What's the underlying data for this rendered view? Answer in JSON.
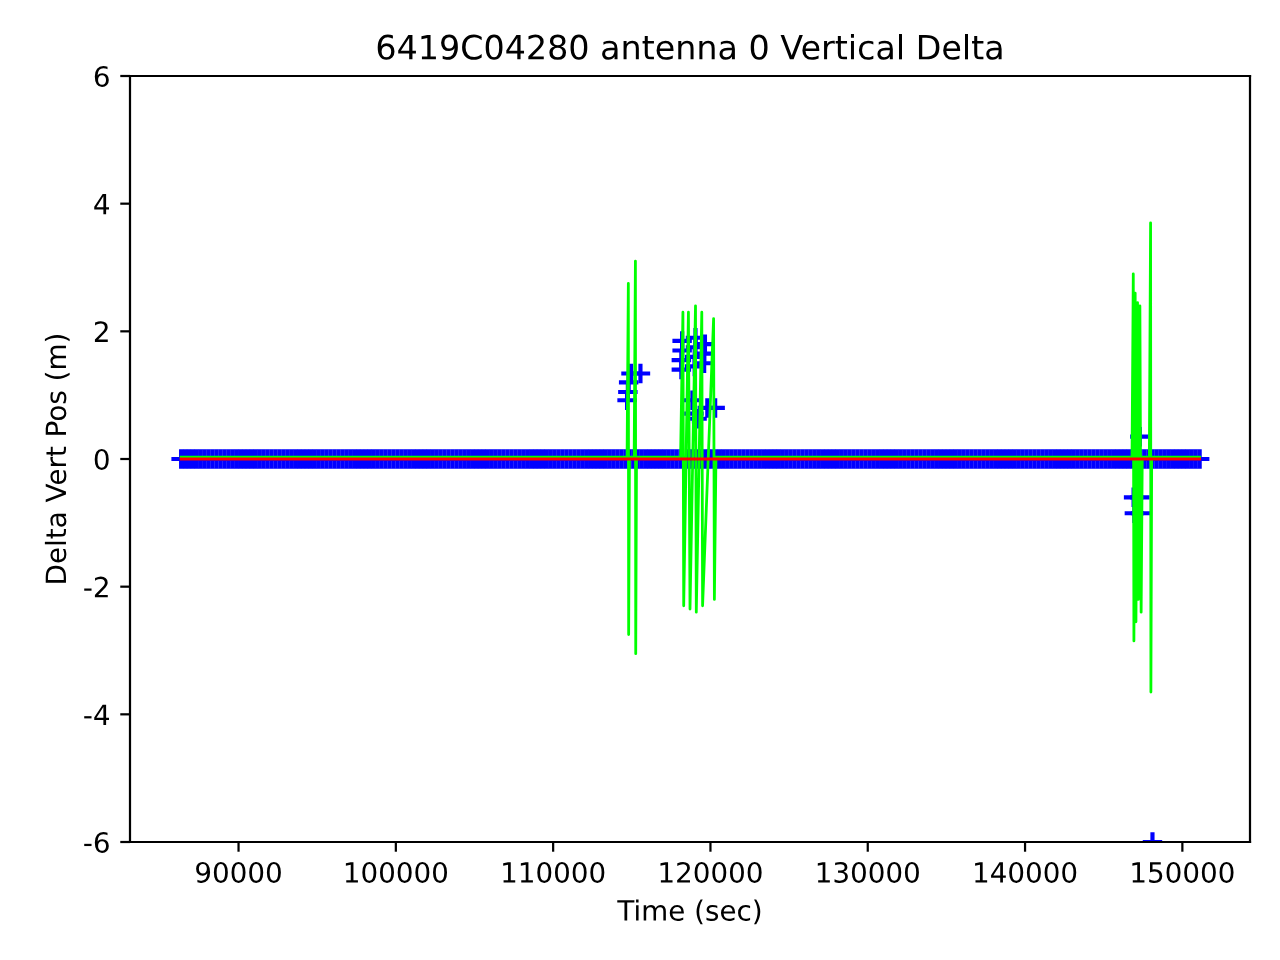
{
  "chart_data": {
    "type": "scatter",
    "title": "6419C04280 antenna 0 Vertical Delta",
    "xlabel": "Time (sec)",
    "ylabel": "Delta Vert Pos (m)",
    "xlim": [
      83100,
      154300
    ],
    "xticks": [
      90000,
      100000,
      110000,
      120000,
      130000,
      140000,
      150000
    ],
    "ylim": [
      -6,
      6
    ],
    "yticks": [
      -6,
      -4,
      -2,
      0,
      2,
      4,
      6
    ],
    "series": [
      {
        "marker": "cross",
        "color": "#0000ff",
        "x": [
          86350,
          86600,
          86850,
          87100,
          87350,
          87600,
          87850,
          88100,
          88350,
          88600,
          88850,
          89100,
          89350,
          89600,
          89850,
          90100,
          90350,
          90600,
          90850,
          91100,
          91350,
          91600,
          91850,
          92100,
          92350,
          92600,
          92850,
          93100,
          93350,
          93600,
          93850,
          94100,
          94350,
          94600,
          94850,
          95100,
          95350,
          95600,
          95850,
          96100,
          96350,
          96600,
          96850,
          97100,
          97350,
          97600,
          97850,
          98100,
          98350,
          98600,
          98850,
          99100,
          99350,
          99600,
          99850,
          100100,
          100350,
          100600,
          100850,
          101100,
          101350,
          101600,
          101850,
          102100,
          102350,
          102600,
          102850,
          103100,
          103350,
          103600,
          103850,
          104100,
          104350,
          104600,
          104850,
          105100,
          105350,
          105600,
          105850,
          106100,
          106350,
          106600,
          106850,
          107100,
          107350,
          107600,
          107850,
          108100,
          108350,
          108600,
          108850,
          109100,
          109350,
          109600,
          109850,
          110100,
          110350,
          110600,
          110850,
          111100,
          111350,
          111600,
          111850,
          112100,
          112350,
          112600,
          112850,
          113100,
          113350,
          113600,
          113850,
          114100,
          114350,
          114600,
          114850,
          115100,
          115350,
          115600,
          115850,
          116100,
          116350,
          116600,
          116850,
          117100,
          117350,
          117600,
          117850,
          118100,
          118600,
          118850,
          119100,
          119350,
          119600,
          119850,
          120100,
          120350,
          120600,
          120850,
          121100,
          121350,
          121600,
          121850,
          122100,
          122350,
          122600,
          122850,
          123100,
          123350,
          123600,
          123850,
          124100,
          124350,
          124600,
          124850,
          125100,
          125350,
          125600,
          125850,
          126100,
          126350,
          126600,
          126850,
          127100,
          127350,
          127600,
          127850,
          128100,
          128350,
          128600,
          128850,
          129100,
          129350,
          129600,
          129850,
          130100,
          130350,
          130600,
          130850,
          131100,
          131350,
          131600,
          131850,
          132100,
          132350,
          132600,
          132850,
          133100,
          133350,
          133600,
          133850,
          134100,
          134350,
          134600,
          134850,
          135100,
          135350,
          135600,
          135850,
          136100,
          136350,
          136600,
          136850,
          137100,
          137350,
          137600,
          137850,
          138100,
          138350,
          138600,
          138850,
          139100,
          139350,
          139600,
          139850,
          140100,
          140350,
          140600,
          140850,
          141100,
          141350,
          141600,
          141850,
          142100,
          142350,
          142600,
          142850,
          143100,
          143350,
          143600,
          143850,
          144100,
          144350,
          144600,
          144850,
          145100,
          145350,
          145600,
          145850,
          146100,
          146350,
          146600,
          146850,
          147350,
          147600,
          147850,
          148100,
          148350,
          148600,
          148850,
          149100,
          149350,
          149600,
          149850,
          150100,
          150350,
          150600,
          150850,
          151100,
          114700,
          114750,
          114800,
          114950,
          115550,
          118150,
          118150,
          118200,
          118200,
          119000,
          119000,
          119050,
          119050,
          119600,
          119600,
          119650,
          118850,
          118950,
          119150,
          119800,
          120300,
          146900,
          147300,
          146950,
          147350,
          147300,
          148100
        ],
        "values": [
          0,
          0,
          0,
          0,
          0,
          0,
          0,
          0,
          0,
          0,
          0,
          0,
          0,
          0,
          0,
          0,
          0,
          0,
          0,
          0,
          0,
          0,
          0,
          0,
          0,
          0,
          0,
          0,
          0,
          0,
          0,
          0,
          0,
          0,
          0,
          0,
          0,
          0,
          0,
          0,
          0,
          0,
          0,
          0,
          0,
          0,
          0,
          0,
          0,
          0,
          0,
          0,
          0,
          0,
          0,
          0,
          0,
          0,
          0,
          0,
          0,
          0,
          0,
          0,
          0,
          0,
          0,
          0,
          0,
          0,
          0,
          0,
          0,
          0,
          0,
          0,
          0,
          0,
          0,
          0,
          0,
          0,
          0,
          0,
          0,
          0,
          0,
          0,
          0,
          0,
          0,
          0,
          0,
          0,
          0,
          0,
          0,
          0,
          0,
          0,
          0,
          0,
          0,
          0,
          0,
          0,
          0,
          0,
          0,
          0,
          0,
          0,
          0,
          0,
          0,
          0,
          0,
          0,
          0,
          0,
          0,
          0,
          0,
          0,
          0,
          0,
          0,
          0,
          0,
          0,
          0,
          0,
          0,
          0,
          0,
          0,
          0,
          0,
          0,
          0,
          0,
          0,
          0,
          0,
          0,
          0,
          0,
          0,
          0,
          0,
          0,
          0,
          0,
          0,
          0,
          0,
          0,
          0,
          0,
          0,
          0,
          0,
          0,
          0,
          0,
          0,
          0,
          0,
          0,
          0,
          0,
          0,
          0,
          0,
          0,
          0,
          0,
          0,
          0,
          0,
          0,
          0,
          0,
          0,
          0,
          0,
          0,
          0,
          0,
          0,
          0,
          0,
          0,
          0,
          0,
          0,
          0,
          0,
          0,
          0,
          0,
          0,
          0,
          0,
          0,
          0,
          0,
          0,
          0,
          0,
          0,
          0,
          0,
          0,
          0,
          0,
          0,
          0,
          0,
          0,
          0,
          0,
          0,
          0,
          0,
          0,
          0,
          0,
          0,
          0,
          0,
          0,
          0,
          0,
          0,
          0,
          0,
          0,
          0,
          0,
          0,
          0,
          0,
          0,
          0,
          0,
          0,
          0,
          0,
          0,
          0,
          0,
          0,
          0,
          0,
          0,
          0,
          0,
          0.92,
          1.05,
          1.2,
          1.34,
          1.34,
          1.4,
          1.55,
          1.7,
          1.85,
          1.45,
          1.6,
          1.75,
          1.9,
          1.5,
          1.65,
          1.8,
          0.92,
          0.71,
          0.63,
          0.8,
          0.8,
          -0.6,
          -0.6,
          -0.85,
          -0.85,
          0.35,
          -6
        ]
      },
      {
        "type": "line",
        "color": "#00ff00",
        "x": [
          86350,
          114700,
          114780,
          114800,
          114850,
          115150,
          115230,
          115250,
          115300,
          118100,
          118250,
          118300,
          118600,
          118700,
          119050,
          119100,
          119450,
          119500,
          120200,
          120250,
          120350,
          146800,
          146880,
          146920,
          147000,
          147050,
          147150,
          147200,
          147300,
          147380,
          147450,
          147900,
          147980,
          148000,
          148050,
          151100
        ],
        "values": [
          0.03,
          0.03,
          2.75,
          -2.75,
          0.03,
          0.03,
          3.1,
          -3.05,
          0.03,
          0.03,
          2.3,
          -2.3,
          2.3,
          -2.35,
          2.4,
          -2.4,
          2.3,
          -2.3,
          2.2,
          -2.2,
          0.03,
          0.03,
          2.9,
          -2.85,
          2.6,
          -2.55,
          2.45,
          -2.2,
          2.4,
          -2.4,
          0.03,
          0.03,
          3.7,
          -3.65,
          0.03,
          0.03
        ]
      },
      {
        "type": "line",
        "color": "#ff0000",
        "x": [
          86350,
          151100
        ],
        "values": [
          0,
          0
        ]
      }
    ]
  }
}
